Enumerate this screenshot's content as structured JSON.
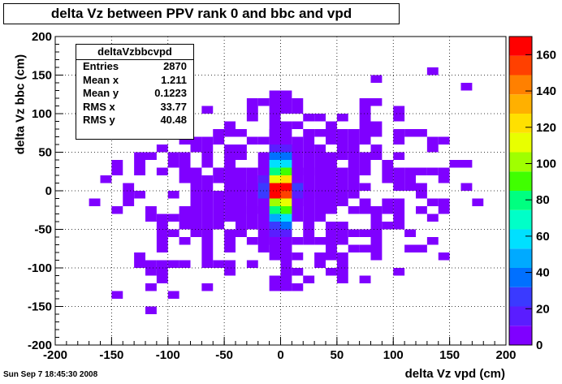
{
  "title": "delta Vz between PPV rank 0 and bbc and vpd",
  "xlabel": "delta Vz vpd (cm)",
  "ylabel": "delta Vz bbc (cm)",
  "datestamp": "Sun Sep  7 18:45:30 2008",
  "stats": {
    "name": "deltaVzbbcvpd",
    "rows": [
      {
        "label": "Entries",
        "value": "2870"
      },
      {
        "label": "Mean x",
        "value": "1.211"
      },
      {
        "label": "Mean y",
        "value": "0.1223"
      },
      {
        "label": "RMS x",
        "value": "33.77"
      },
      {
        "label": "RMS y",
        "value": "40.48"
      }
    ]
  },
  "chart_data": {
    "type": "heatmap",
    "title": "delta Vz between PPV rank 0 and bbc and vpd",
    "xlabel": "delta Vz vpd (cm)",
    "ylabel": "delta Vz bbc (cm)",
    "xlim": [
      -200,
      200
    ],
    "ylim": [
      -200,
      200
    ],
    "bin_size": 10,
    "x_ticks": [
      -200,
      -150,
      -100,
      -50,
      0,
      50,
      100,
      150,
      200
    ],
    "y_ticks": [
      -200,
      -150,
      -100,
      -50,
      0,
      50,
      100,
      150,
      200
    ],
    "z_range": [
      0,
      170
    ],
    "z_ticks": [
      0,
      20,
      40,
      60,
      80,
      100,
      120,
      140,
      160
    ],
    "grid": true,
    "colors": [
      "#7f00ff",
      "#5a1dff",
      "#3a3aff",
      "#0070ff",
      "#00aaff",
      "#00e0ff",
      "#00ffc8",
      "#00ff80",
      "#40ff00",
      "#a0ff00",
      "#e8ff00",
      "#ffe000",
      "#ffb000",
      "#ff8000",
      "#ff4000",
      "#ff0000"
    ],
    "cells": [
      [
        5,
        5,
        170
      ],
      [
        -5,
        5,
        160
      ],
      [
        5,
        -5,
        150
      ],
      [
        -5,
        -5,
        165
      ],
      [
        5,
        15,
        120
      ],
      [
        -5,
        15,
        110
      ],
      [
        5,
        -15,
        115
      ],
      [
        -5,
        -15,
        105
      ],
      [
        5,
        25,
        90
      ],
      [
        -5,
        25,
        80
      ],
      [
        5,
        -25,
        85
      ],
      [
        -5,
        -25,
        75
      ],
      [
        5,
        35,
        60
      ],
      [
        -5,
        35,
        55
      ],
      [
        5,
        -35,
        55
      ],
      [
        -5,
        -35,
        50
      ],
      [
        5,
        45,
        40
      ],
      [
        -5,
        45,
        35
      ],
      [
        5,
        -45,
        35
      ],
      [
        -5,
        -45,
        30
      ],
      [
        5,
        55,
        18
      ],
      [
        -5,
        55,
        15
      ],
      [
        5,
        -55,
        20
      ],
      [
        -5,
        -55,
        18
      ],
      [
        15,
        5,
        25
      ],
      [
        -15,
        5,
        22
      ],
      [
        15,
        -5,
        20
      ],
      [
        -15,
        -5,
        28
      ],
      [
        15,
        15,
        10
      ],
      [
        -15,
        15,
        12
      ],
      [
        15,
        -15,
        8
      ],
      [
        -15,
        -15,
        10
      ],
      [
        25,
        25,
        5
      ],
      [
        -25,
        -25,
        5
      ],
      [
        -25,
        5,
        5
      ],
      [
        25,
        -5,
        5
      ],
      [
        15,
        25,
        5
      ],
      [
        -15,
        -25,
        5
      ],
      [
        5,
        65,
        8
      ],
      [
        -5,
        -65,
        8
      ],
      [
        5,
        -75,
        3
      ],
      [
        -5,
        75,
        3
      ]
    ]
  }
}
